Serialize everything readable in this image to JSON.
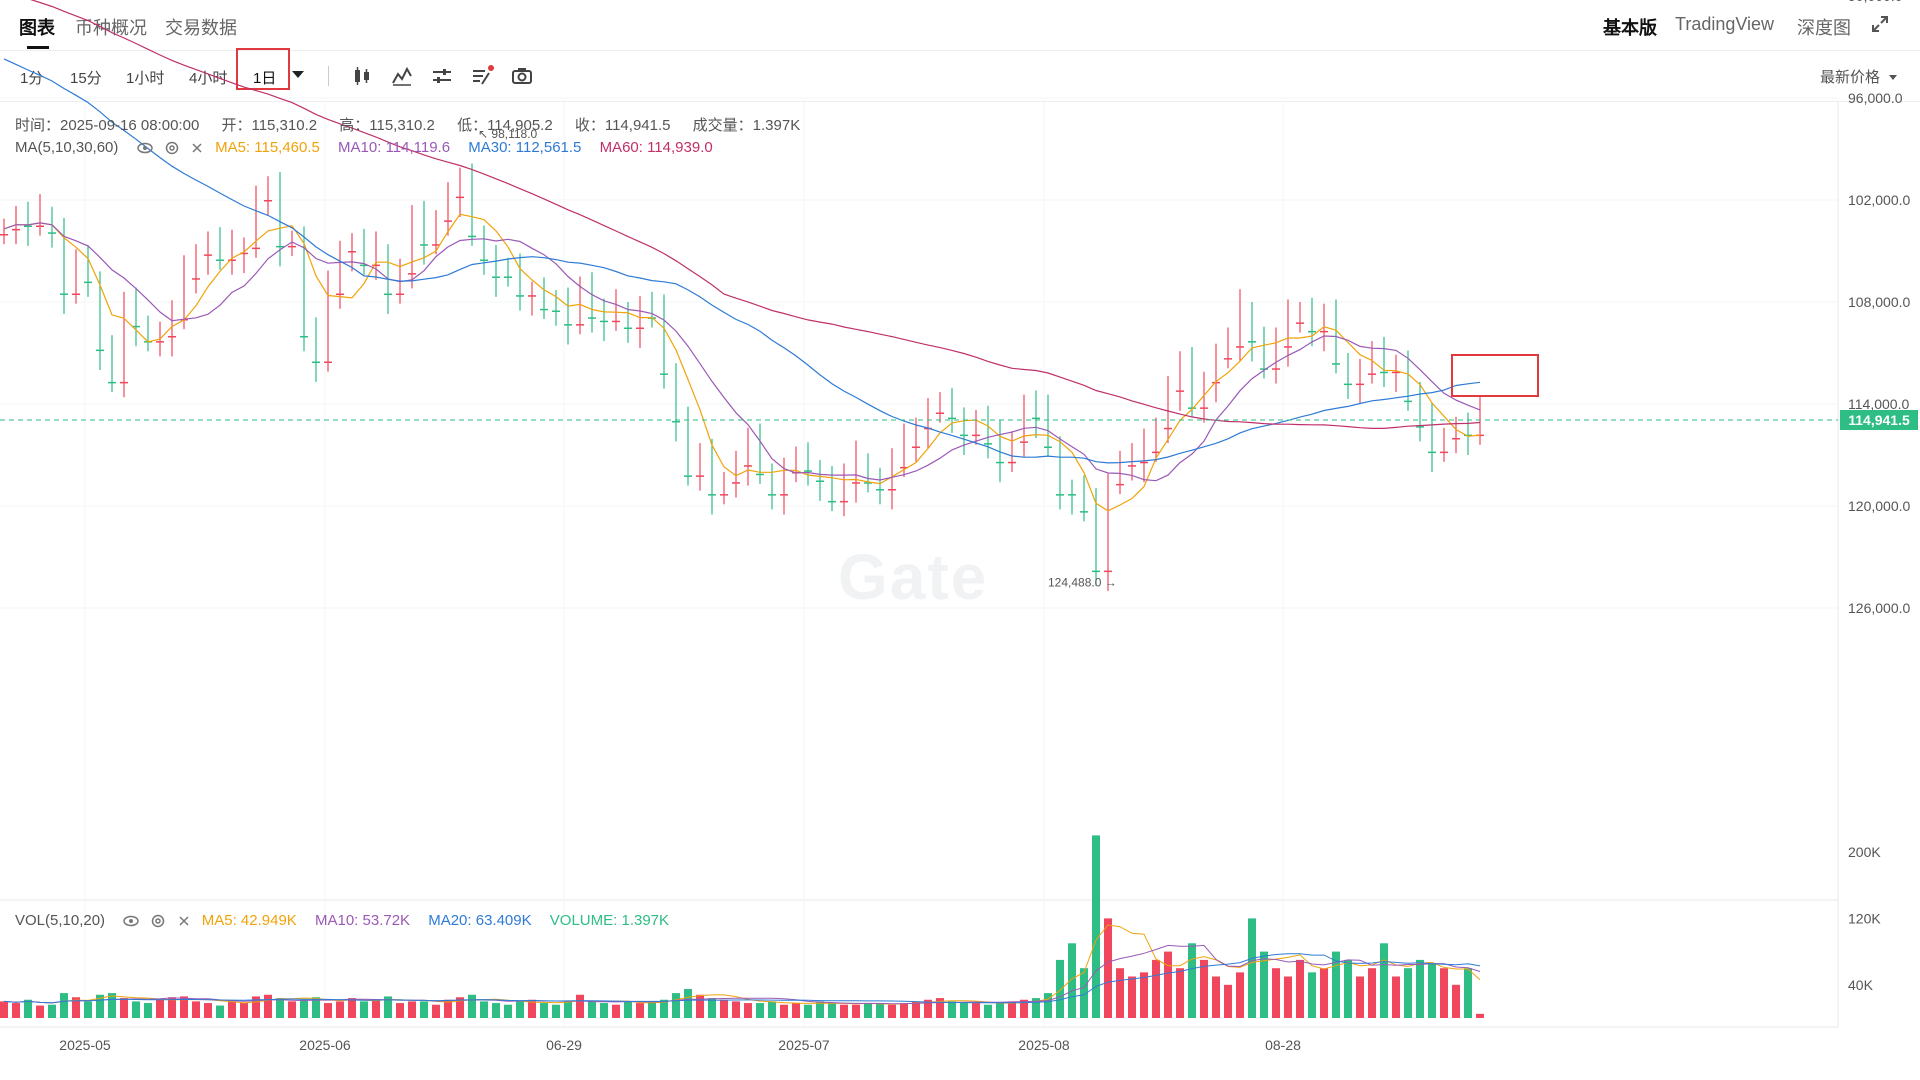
{
  "nav": {
    "tabs": [
      "图表",
      "币种概况",
      "交易数据"
    ],
    "right_tabs": [
      "基本版",
      "TradingView",
      "深度图"
    ]
  },
  "toolbar": {
    "intervals": [
      "1分",
      "15分",
      "1小时",
      "4小时",
      "1日"
    ],
    "selected_interval": "1日",
    "price_type": "最新价格"
  },
  "ohlc": {
    "time": "时间：2025-09-16 08:00:00",
    "open": "开：115,310.2",
    "high": "高：115,310.2",
    "low": "低：114,905.2",
    "close": "收：114,941.5",
    "volume": "成交量：1.397K"
  },
  "ma_legend": {
    "name": "MA(5,10,30,60)",
    "ma5": "MA5: 115,460.5",
    "ma10": "MA10: 114,119.6",
    "ma30": "MA30: 112,561.5",
    "ma60": "MA60: 114,939.0"
  },
  "vol_legend": {
    "name": "VOL(5,10,20)",
    "ma5": "MA5: 42.949K",
    "ma10": "MA10: 53.72K",
    "ma20": "MA20: 63.409K",
    "volume": "VOLUME: 1.397K"
  },
  "watermark": "Gate",
  "colors": {
    "up": "#2ebd85",
    "down": "#f0475e",
    "ma5": "#f0a30a",
    "ma10": "#9b59b6",
    "ma30": "#2e7bd6",
    "ma60": "#c0306a",
    "vma20": "#2e7bd6",
    "volume": "#2ebd85"
  },
  "chart_data": {
    "type": "candlestick",
    "price_axis": [
      "126,000.0",
      "120,000.0",
      "114,000.0",
      "108,000.0",
      "102,000.0",
      "96,000.0",
      "90,000.0"
    ],
    "volume_axis": [
      "200K",
      "120K",
      "40K"
    ],
    "time_axis": [
      "2025-05",
      "2025-06",
      "06-29",
      "2025-07",
      "2025-08",
      "08-28"
    ],
    "last_price": "114,941.5",
    "max_label": "124,488.0",
    "min_label": "98,118.0",
    "ylim": [
      84000,
      130000
    ],
    "closes": [
      103700,
      103200,
      103500,
      103000,
      103900,
      107500,
      106000,
      106800,
      110800,
      112700,
      108500,
      109400,
      110300,
      110000,
      109000,
      106600,
      105200,
      104700,
      105500,
      105100,
      104800,
      102000,
      101700,
      104700,
      104400,
      110000,
      111500,
      107500,
      105000,
      104800,
      105800,
      105200,
      107500,
      106300,
      103400,
      104600,
      103200,
      101800,
      101200,
      104100,
      105500,
      106500,
      106500,
      107600,
      107400,
      108400,
      108500,
      109300,
      107100,
      108900,
      109100,
      108600,
      109500,
      108500,
      108900,
      112200,
      115000,
      118200,
      117400,
      119300,
      118600,
      117600,
      116500,
      118100,
      119300,
      118000,
      117600,
      117900,
      118500,
      119700,
      118600,
      117500,
      118600,
      119000,
      117700,
      116500,
      115400,
      114500,
      114400,
      114800,
      115800,
      115200,
      116300,
      117400,
      116200,
      114300,
      114800,
      116500,
      119300,
      119300,
      120300,
      123800,
      118700,
      117600,
      117400,
      116800,
      115400,
      113200,
      112000,
      114200,
      112700,
      111300,
      110600,
      108600,
      110300,
      111900,
      110600,
      109200,
      108600,
      109700,
      109200,
      111600,
      112800,
      112200,
      111400,
      112100,
      111700,
      113800,
      115300,
      116800,
      116000,
      115600,
      115800,
      114941.5
    ],
    "volumes": [
      20,
      18,
      22,
      15,
      16,
      30,
      25,
      20,
      28,
      30,
      24,
      20,
      18,
      22,
      25,
      26,
      20,
      18,
      15,
      20,
      18,
      26,
      28,
      24,
      20,
      22,
      25,
      18,
      20,
      24,
      20,
      22,
      26,
      18,
      20,
      20,
      16,
      22,
      25,
      28,
      20,
      18,
      16,
      20,
      22,
      18,
      16,
      20,
      28,
      20,
      18,
      16,
      20,
      18,
      20,
      22,
      30,
      35,
      28,
      24,
      22,
      20,
      18,
      18,
      20,
      16,
      18,
      16,
      20,
      18,
      16,
      16,
      18,
      18,
      16,
      18,
      20,
      22,
      24,
      20,
      18,
      18,
      16,
      18,
      20,
      22,
      24,
      30,
      70,
      90,
      60,
      220,
      120,
      60,
      50,
      55,
      70,
      80,
      60,
      90,
      70,
      50,
      40,
      55,
      120,
      80,
      60,
      50,
      70,
      55,
      60,
      80,
      70,
      50,
      60,
      90,
      50,
      60,
      70,
      65,
      60,
      40,
      60,
      5
    ]
  }
}
